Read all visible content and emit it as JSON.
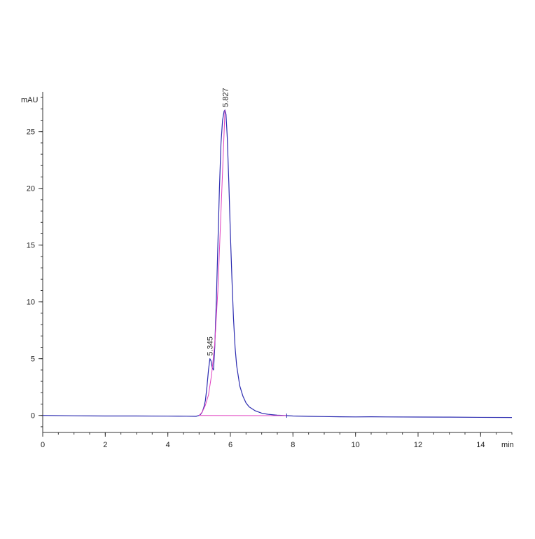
{
  "chart_data": {
    "type": "line",
    "title": "",
    "xlabel": "min",
    "ylabel": "mAU",
    "xlim": [
      0,
      15
    ],
    "ylim": [
      -1.5,
      28.5
    ],
    "grid": false,
    "x_ticks": [
      0,
      2,
      4,
      6,
      8,
      10,
      12,
      14
    ],
    "x_tick_labels": [
      "0",
      "2",
      "4",
      "6",
      "8",
      "10",
      "12",
      "14"
    ],
    "y_ticks": [
      0,
      5,
      10,
      15,
      20,
      25
    ],
    "y_tick_labels": [
      "0",
      "5",
      "10",
      "15",
      "20",
      "25"
    ],
    "series": [
      {
        "color": "#2b2bb0",
        "x": [
          0,
          1,
          2,
          3,
          4,
          4.6,
          4.9,
          5.0,
          5.05,
          5.1,
          5.15,
          5.2,
          5.25,
          5.3,
          5.345,
          5.38,
          5.42,
          5.46,
          5.5,
          5.55,
          5.6,
          5.65,
          5.7,
          5.75,
          5.8,
          5.827,
          5.86,
          5.9,
          5.95,
          6.0,
          6.05,
          6.1,
          6.15,
          6.2,
          6.3,
          6.4,
          6.5,
          6.6,
          6.8,
          7.0,
          7.2,
          7.5,
          7.8,
          8.0,
          8.5,
          9.0,
          9.5,
          10.0,
          10.5,
          11.0,
          12.0,
          13.0,
          14.0,
          15.0
        ],
        "y": [
          0.0,
          -0.03,
          -0.05,
          -0.05,
          -0.06,
          -0.07,
          -0.08,
          0.0,
          0.1,
          0.3,
          0.7,
          1.3,
          2.5,
          4.0,
          5.0,
          4.8,
          4.2,
          4.0,
          6.0,
          10.0,
          15.0,
          20.0,
          24.0,
          26.0,
          26.8,
          26.9,
          26.5,
          24.5,
          20.5,
          16.0,
          12.0,
          8.5,
          6.0,
          4.4,
          2.6,
          1.7,
          1.1,
          0.75,
          0.4,
          0.2,
          0.1,
          0.02,
          -0.02,
          -0.05,
          -0.08,
          -0.1,
          -0.12,
          -0.13,
          -0.12,
          -0.13,
          -0.14,
          -0.15,
          -0.17,
          -0.18
        ]
      },
      {
        "color": "#e040c0",
        "x": [
          5.0,
          5.1,
          5.2,
          5.3,
          5.4,
          5.5,
          5.6,
          5.7,
          5.8,
          5.827
        ],
        "y": [
          0.0,
          0.3,
          0.9,
          1.8,
          3.6,
          6.3,
          11.0,
          18.0,
          25.0,
          26.9
        ]
      },
      {
        "color": "#e040c0",
        "x": [
          5.0,
          7.8
        ],
        "y": [
          0.0,
          -0.02
        ]
      }
    ],
    "peak_labels": [
      {
        "x": 5.345,
        "y": 5.0,
        "text": "5.345"
      },
      {
        "x": 5.827,
        "y": 26.9,
        "text": "5.827"
      }
    ]
  }
}
